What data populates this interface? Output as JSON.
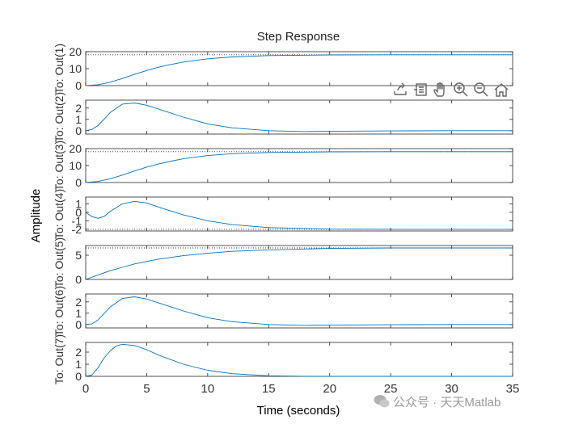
{
  "chart_data": {
    "type": "line",
    "title": "Step Response",
    "xlabel": "Time (seconds)",
    "ylabel": "Amplitude",
    "xlim": [
      0,
      35
    ],
    "x_ticks": [
      "0",
      "5",
      "10",
      "15",
      "20",
      "25",
      "30",
      "35"
    ],
    "grid": false,
    "series_color": "#0072bd",
    "reference_line_color": "#333333",
    "subplots": [
      {
        "name": "To: Out(1)",
        "ylim": [
          0,
          20
        ],
        "y_ticks": [
          0,
          10,
          20
        ],
        "steady_state": 18.2,
        "x": [
          0,
          1,
          2,
          3,
          4,
          5,
          6,
          7,
          8,
          10,
          12,
          15,
          20,
          25,
          30,
          35
        ],
        "values": [
          0,
          0.5,
          2.0,
          4.2,
          6.6,
          8.9,
          10.9,
          12.5,
          13.9,
          15.8,
          16.9,
          17.7,
          18.1,
          18.2,
          18.2,
          18.2
        ]
      },
      {
        "name": "To: Out(2)",
        "ylim": [
          -0.3,
          2.7
        ],
        "y_ticks": [
          0,
          1,
          2
        ],
        "steady_state": null,
        "x": [
          0,
          0.5,
          1,
          1.5,
          2,
          3,
          4,
          5,
          6,
          8,
          10,
          12,
          15,
          18,
          20,
          25,
          30,
          35
        ],
        "values": [
          0,
          0.1,
          0.45,
          1.0,
          1.6,
          2.35,
          2.45,
          2.25,
          1.9,
          1.2,
          0.6,
          0.25,
          0.0,
          -0.08,
          -0.06,
          -0.02,
          0,
          0
        ]
      },
      {
        "name": "To: Out(3)",
        "ylim": [
          0,
          20
        ],
        "y_ticks": [
          0,
          10,
          20
        ],
        "steady_state": 18.2,
        "x": [
          0,
          1,
          2,
          3,
          4,
          5,
          6,
          7,
          8,
          10,
          12,
          15,
          20,
          25,
          30,
          35
        ],
        "values": [
          0,
          0.6,
          2.2,
          4.4,
          6.8,
          9.1,
          11.0,
          12.6,
          14.0,
          15.9,
          17.0,
          17.7,
          18.1,
          18.2,
          18.2,
          18.2
        ]
      },
      {
        "name": "To: Out(4)",
        "ylim": [
          -2.2,
          1.8
        ],
        "y_ticks": [
          -2,
          -1,
          0,
          1
        ],
        "steady_state": -2,
        "x": [
          0,
          0.5,
          1,
          1.5,
          2,
          3,
          4,
          5,
          6,
          8,
          10,
          12,
          15,
          20,
          25,
          30,
          35
        ],
        "values": [
          0,
          -0.5,
          -0.7,
          -0.5,
          0.1,
          1.0,
          1.3,
          1.1,
          0.6,
          -0.3,
          -1.0,
          -1.45,
          -1.8,
          -1.98,
          -2.0,
          -2.0,
          -2.0
        ]
      },
      {
        "name": "To: Out(5)",
        "ylim": [
          0,
          7
        ],
        "y_ticks": [
          0,
          5
        ],
        "steady_state": 6.5,
        "x": [
          0,
          1,
          2,
          3,
          4,
          5,
          6,
          8,
          10,
          12,
          15,
          20,
          25,
          30,
          35
        ],
        "values": [
          0,
          0.9,
          1.8,
          2.5,
          3.2,
          3.7,
          4.2,
          4.9,
          5.4,
          5.8,
          6.1,
          6.4,
          6.5,
          6.5,
          6.5
        ]
      },
      {
        "name": "To: Out(6)",
        "ylim": [
          -0.3,
          2.7
        ],
        "y_ticks": [
          0,
          1,
          2
        ],
        "steady_state": null,
        "x": [
          0,
          0.5,
          1,
          1.5,
          2,
          3,
          4,
          5,
          6,
          8,
          10,
          12,
          15,
          18,
          20,
          25,
          30,
          35
        ],
        "values": [
          0,
          0.05,
          0.4,
          0.95,
          1.55,
          2.3,
          2.45,
          2.25,
          1.9,
          1.2,
          0.6,
          0.25,
          0.0,
          -0.08,
          -0.06,
          -0.02,
          0,
          0
        ]
      },
      {
        "name": "To: Out(7)",
        "ylim": [
          0,
          2.8
        ],
        "y_ticks": [
          0,
          1,
          2
        ],
        "steady_state": null,
        "x": [
          0,
          0.5,
          1,
          1.5,
          2,
          2.5,
          3,
          4,
          5,
          6,
          8,
          10,
          12,
          15,
          18,
          20,
          25,
          35
        ],
        "values": [
          0,
          0.1,
          0.7,
          1.5,
          2.1,
          2.5,
          2.65,
          2.55,
          2.2,
          1.75,
          1.0,
          0.5,
          0.22,
          0.05,
          0.01,
          0,
          0,
          0
        ]
      }
    ]
  },
  "toolbar": {
    "buttons": [
      {
        "name": "export-icon"
      },
      {
        "name": "data-tips-icon"
      },
      {
        "name": "pan-icon"
      },
      {
        "name": "zoom-in-icon"
      },
      {
        "name": "zoom-out-icon"
      },
      {
        "name": "home-icon"
      }
    ]
  },
  "watermark": {
    "text": "公众号 · 天天Matlab"
  }
}
